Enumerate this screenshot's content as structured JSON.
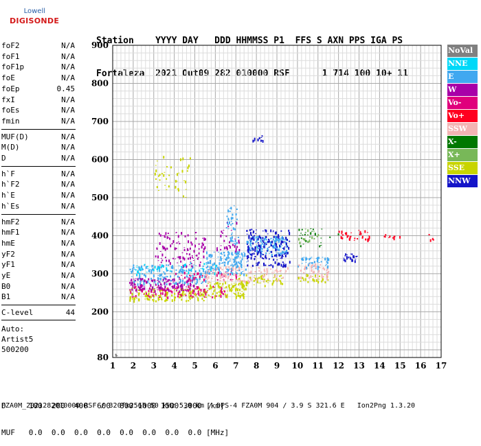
{
  "logo": {
    "top": "Lowell",
    "bottom": "DIGISONDE"
  },
  "header": {
    "labels": "Station    YYYY DAY   DDD HHMMSS P1  FFS S AXN PPS IGA PS",
    "values": "Fortaleza  2021 Out09 282 010000 RSF      1 714 100 10+ 11"
  },
  "params": {
    "group1": [
      {
        "name": "foF2",
        "value": "N/A"
      },
      {
        "name": "foF1",
        "value": "N/A"
      },
      {
        "name": "foF1p",
        "value": "N/A"
      },
      {
        "name": "foE",
        "value": "N/A"
      },
      {
        "name": "foEp",
        "value": "0.45"
      },
      {
        "name": "fxI",
        "value": "N/A"
      },
      {
        "name": "foEs",
        "value": "N/A"
      },
      {
        "name": "fmin",
        "value": "N/A"
      }
    ],
    "group2": [
      {
        "name": "MUF(D)",
        "value": "N/A"
      },
      {
        "name": "M(D)",
        "value": "N/A"
      },
      {
        "name": "D",
        "value": "N/A"
      }
    ],
    "group3": [
      {
        "name": "h`F",
        "value": "N/A"
      },
      {
        "name": "h`F2",
        "value": "N/A"
      },
      {
        "name": "h`E",
        "value": "N/A"
      },
      {
        "name": "h`Es",
        "value": "N/A"
      }
    ],
    "group4": [
      {
        "name": "hmF2",
        "value": "N/A"
      },
      {
        "name": "hmF1",
        "value": "N/A"
      },
      {
        "name": "hmE",
        "value": "N/A"
      },
      {
        "name": "yF2",
        "value": "N/A"
      },
      {
        "name": "yF1",
        "value": "N/A"
      },
      {
        "name": "yE",
        "value": "N/A"
      },
      {
        "name": "B0",
        "value": "N/A"
      },
      {
        "name": "B1",
        "value": "N/A"
      }
    ],
    "clevel": {
      "name": "C-level",
      "value": "44"
    }
  },
  "auto": {
    "line1": "Auto:",
    "line2": "Artist5",
    "line3": "500200"
  },
  "legend": [
    {
      "label": "NoVal",
      "color": "#808080"
    },
    {
      "label": "NNE",
      "color": "#00d8f8"
    },
    {
      "label": "E",
      "color": "#40a8f0"
    },
    {
      "label": "W",
      "color": "#a800a8"
    },
    {
      "label": "Vo-",
      "color": "#e0007c"
    },
    {
      "label": "Vo+",
      "color": "#ff0020"
    },
    {
      "label": "SSW",
      "color": "#f4b4b4"
    },
    {
      "label": "X-",
      "color": "#007800"
    },
    {
      "label": "X+",
      "color": "#78b858"
    },
    {
      "label": "SSE",
      "color": "#c8d400"
    },
    {
      "label": "NNW",
      "color": "#1414c8"
    }
  ],
  "bottom": {
    "d_row": "D     100  200  400  600  800 1000 1500 3000 [km]",
    "muf_row": "MUF   0.0  0.0  0.0  0.0  0.0  0.0  0.0  0.0 [MHz]"
  },
  "footer": "FZA0M_2021282010000.RSF / 320fx256h 50 kHz 5.0 km / DPS-4 FZA0M 904 / 3.9 S 321.6 E   Ion2Png 1.3.20",
  "chart_data": {
    "type": "scatter",
    "xlim": [
      1,
      17
    ],
    "ylim": [
      80,
      900
    ],
    "x_ticks": [
      1,
      2,
      3,
      4,
      5,
      6,
      7,
      8,
      9,
      10,
      11,
      12,
      13,
      14,
      15,
      16,
      17
    ],
    "y_ticks": [
      80,
      200,
      300,
      400,
      500,
      600,
      700,
      800,
      900
    ],
    "grid": true,
    "legend_position": "right",
    "series": [
      {
        "name": "SSE",
        "color": "#c8d400",
        "clusters": [
          [
            1.8,
            5.5,
            230,
            265,
            160
          ],
          [
            5.5,
            7.5,
            240,
            280,
            110
          ],
          [
            3.0,
            4.8,
            500,
            610,
            40
          ],
          [
            7.0,
            9.3,
            270,
            300,
            60
          ],
          [
            10.0,
            11.5,
            280,
            300,
            30
          ]
        ]
      },
      {
        "name": "E",
        "color": "#40a8f0",
        "clusters": [
          [
            1.8,
            5.5,
            275,
            325,
            190
          ],
          [
            5.5,
            7.5,
            300,
            360,
            150
          ],
          [
            7.5,
            9.5,
            350,
            400,
            150
          ],
          [
            10.0,
            11.5,
            315,
            345,
            50
          ],
          [
            6.5,
            7.1,
            380,
            480,
            40
          ]
        ]
      },
      {
        "name": "W",
        "color": "#a800a8",
        "clusters": [
          [
            1.8,
            5.0,
            255,
            290,
            130
          ],
          [
            3.0,
            5.5,
            320,
            410,
            110
          ],
          [
            6.0,
            7.2,
            360,
            440,
            30
          ]
        ]
      },
      {
        "name": "Vo-",
        "color": "#e0007c",
        "clusters": [
          [
            1.8,
            6.5,
            240,
            270,
            90
          ],
          [
            4.0,
            7.0,
            285,
            310,
            40
          ]
        ]
      },
      {
        "name": "SSW",
        "color": "#f4b4b4",
        "clusters": [
          [
            5.5,
            9.5,
            280,
            320,
            110
          ],
          [
            10.0,
            11.5,
            290,
            330,
            50
          ]
        ]
      },
      {
        "name": "NNW",
        "color": "#1414c8",
        "clusters": [
          [
            7.5,
            9.6,
            320,
            420,
            170
          ],
          [
            7.8,
            8.3,
            645,
            665,
            10
          ],
          [
            12.2,
            12.9,
            335,
            355,
            25
          ]
        ]
      },
      {
        "name": "NNE",
        "color": "#00d8f8",
        "clusters": [
          [
            2.0,
            6.0,
            300,
            330,
            40
          ]
        ]
      },
      {
        "name": "Vo+",
        "color": "#ff0020",
        "clusters": [
          [
            12.0,
            13.5,
            385,
            415,
            35
          ],
          [
            14.2,
            15.0,
            395,
            405,
            10
          ],
          [
            16.3,
            16.6,
            390,
            405,
            4
          ]
        ]
      },
      {
        "name": "X-",
        "color": "#007800",
        "clusters": [
          [
            10.0,
            12.0,
            370,
            420,
            25
          ]
        ]
      },
      {
        "name": "X+",
        "color": "#78b858",
        "clusters": [
          [
            10.0,
            11.0,
            380,
            420,
            15
          ]
        ]
      },
      {
        "name": "NoVal",
        "color": "#808080",
        "clusters": [
          [
            1.0,
            1.2,
            84,
            90,
            4
          ]
        ]
      }
    ]
  }
}
